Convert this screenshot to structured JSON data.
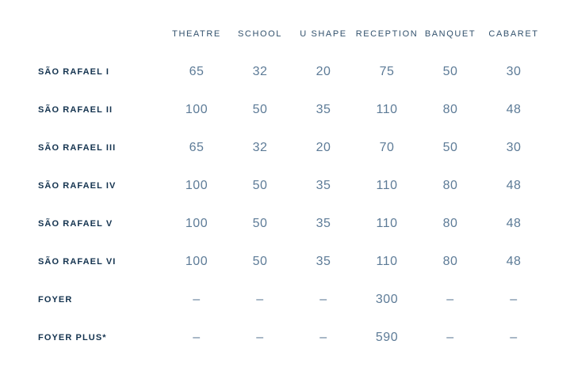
{
  "colors": {
    "background": "#ffffff",
    "header_text": "#33526d",
    "row_label_text": "#14334f",
    "value_text": "#5d7b97"
  },
  "table": {
    "corner_label": "",
    "columns": [
      "THEATRE",
      "SCHOOL",
      "U SHAPE",
      "RECEPTION",
      "BANQUET",
      "CABARET"
    ],
    "rows": [
      {
        "label": "SÃO RAFAEL I",
        "values": [
          "65",
          "32",
          "20",
          "75",
          "50",
          "30"
        ]
      },
      {
        "label": "SÃO RAFAEL II",
        "values": [
          "100",
          "50",
          "35",
          "110",
          "80",
          "48"
        ]
      },
      {
        "label": "SÃO RAFAEL III",
        "values": [
          "65",
          "32",
          "20",
          "70",
          "50",
          "30"
        ]
      },
      {
        "label": "SÃO RAFAEL IV",
        "values": [
          "100",
          "50",
          "35",
          "110",
          "80",
          "48"
        ]
      },
      {
        "label": "SÃO RAFAEL V",
        "values": [
          "100",
          "50",
          "35",
          "110",
          "80",
          "48"
        ]
      },
      {
        "label": "SÃO RAFAEL VI",
        "values": [
          "100",
          "50",
          "35",
          "110",
          "80",
          "48"
        ]
      },
      {
        "label": "FOYER",
        "values": [
          "–",
          "–",
          "–",
          "300",
          "–",
          "–"
        ]
      },
      {
        "label": "FOYER PLUS*",
        "values": [
          "–",
          "–",
          "–",
          "590",
          "–",
          "–"
        ]
      }
    ]
  },
  "chart_data": {
    "type": "table",
    "title": "",
    "columns": [
      "THEATRE",
      "SCHOOL",
      "U SHAPE",
      "RECEPTION",
      "BANQUET",
      "CABARET"
    ],
    "row_labels": [
      "SÃO RAFAEL I",
      "SÃO RAFAEL II",
      "SÃO RAFAEL III",
      "SÃO RAFAEL IV",
      "SÃO RAFAEL V",
      "SÃO RAFAEL VI",
      "FOYER",
      "FOYER PLUS*"
    ],
    "values": [
      [
        65,
        32,
        20,
        75,
        50,
        30
      ],
      [
        100,
        50,
        35,
        110,
        80,
        48
      ],
      [
        65,
        32,
        20,
        70,
        50,
        30
      ],
      [
        100,
        50,
        35,
        110,
        80,
        48
      ],
      [
        100,
        50,
        35,
        110,
        80,
        48
      ],
      [
        100,
        50,
        35,
        110,
        80,
        48
      ],
      [
        null,
        null,
        null,
        300,
        null,
        null
      ],
      [
        null,
        null,
        null,
        590,
        null,
        null
      ]
    ],
    "missing_value_symbol": "–",
    "layout": "room-capacity matrix; first column room names, six capacity configuration columns; no gridlines; white background"
  }
}
